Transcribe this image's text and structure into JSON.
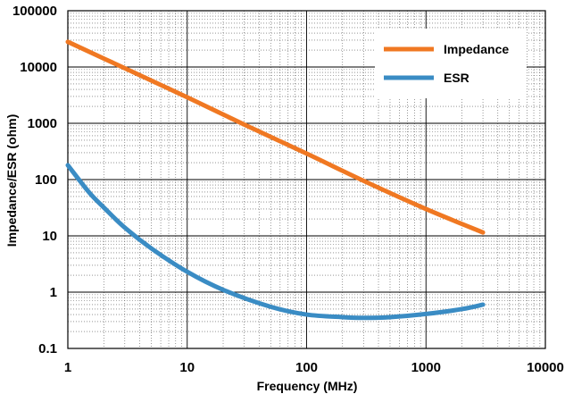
{
  "chart_data": {
    "type": "line",
    "title": "",
    "xlabel": "Frequency  (MHz)",
    "ylabel": "Impedance/ESR (ohm)",
    "x_scale": "log",
    "y_scale": "log",
    "xlim": [
      1,
      10000
    ],
    "ylim": [
      0.1,
      100000
    ],
    "x_ticks": [
      "1",
      "10",
      "100",
      "1000",
      "10000"
    ],
    "y_ticks": [
      "0.1",
      "1",
      "10",
      "100",
      "1000",
      "10000",
      "100000"
    ],
    "grid": true,
    "legend_position": "top-right",
    "series": [
      {
        "name": "Impedance",
        "color": "#f07822",
        "points": [
          [
            1,
            28000
          ],
          [
            3,
            9500
          ],
          [
            10,
            2900
          ],
          [
            30,
            950
          ],
          [
            100,
            290
          ],
          [
            300,
            95
          ],
          [
            1000,
            30
          ],
          [
            3000,
            11.5
          ]
        ]
      },
      {
        "name": "ESR",
        "color": "#3a8cc4",
        "points": [
          [
            1,
            180
          ],
          [
            1.5,
            60
          ],
          [
            2,
            32
          ],
          [
            3,
            14
          ],
          [
            5,
            6
          ],
          [
            10,
            2.3
          ],
          [
            20,
            1.1
          ],
          [
            50,
            0.55
          ],
          [
            100,
            0.4
          ],
          [
            200,
            0.36
          ],
          [
            300,
            0.35
          ],
          [
            500,
            0.36
          ],
          [
            1000,
            0.41
          ],
          [
            2000,
            0.5
          ],
          [
            3000,
            0.6
          ]
        ]
      }
    ]
  }
}
